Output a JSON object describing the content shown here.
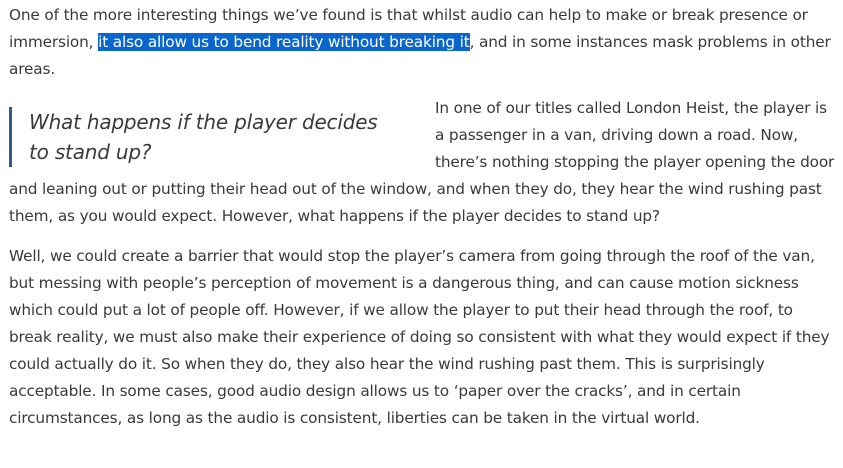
{
  "intro": {
    "before": "One of the more interesting things we’ve found is that whilst audio can help to make or break presence or immersion, ",
    "highlight": "it also allow us to bend reality without breaking it",
    "after": ", and in some instances mask problems in other areas."
  },
  "pullquote": "What happens if the player decides to stand up?",
  "paragraph_heist": "In one of our titles called London Heist, the player is a passenger in a van, driving down a road.  Now, there’s nothing stopping the player opening the door and leaning out or putting their head out of the window, and when they do, they hear the wind rushing past them, as you would expect.  However, what happens if the player decides to stand up?",
  "paragraph_barrier": "Well, we could create a barrier that would stop the player’s camera from going through the roof of the van, but messing with people’s perception of movement is a dangerous thing, and can cause motion sickness which could put a lot of people off.  However, if we allow the player to put their head through the roof, to break reality, we must also make their experience of doing so consistent with what they would expect if they could actually do it.  So when they do, they also hear the wind rushing past them.  This is surprisingly acceptable.  In some cases, good audio design allows us to ‘paper over the cracks’, and in certain circumstances, as long as the audio is consistent, liberties can be taken in the virtual world.",
  "colors": {
    "text": "#3a3a3a",
    "selection_bg": "#0a66cc",
    "selection_text": "#ffffff",
    "quote_border": "#2f5f8f"
  }
}
